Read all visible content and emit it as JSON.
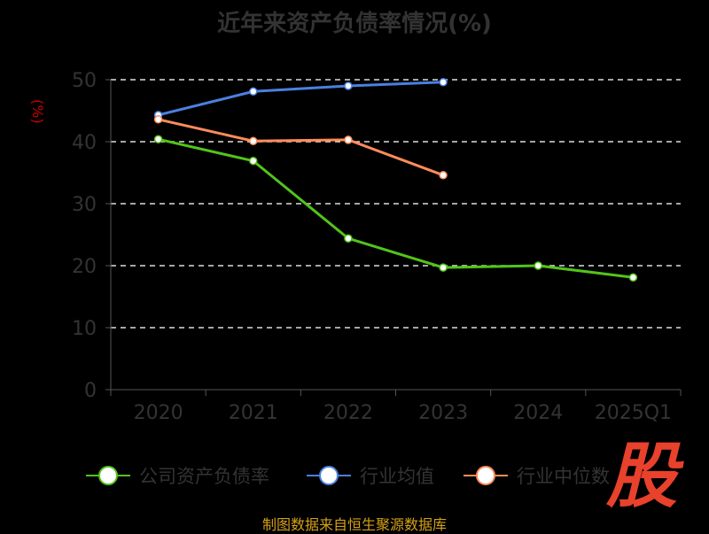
{
  "chart_data": {
    "type": "line",
    "title": "近年来资产负债率情况(%)",
    "ylabel": "(%)",
    "xlabel": "",
    "categories": [
      "2020",
      "2021",
      "2022",
      "2023",
      "2024",
      "2025Q1"
    ],
    "ylim": [
      0,
      50
    ],
    "yticks": [
      0,
      10,
      20,
      30,
      40,
      50
    ],
    "grid": true,
    "legend_position": "bottom",
    "series": [
      {
        "name": "公司资产负债率",
        "color": "#52c41a",
        "values": [
          40.4,
          36.9,
          24.4,
          19.7,
          20.0,
          18.1
        ]
      },
      {
        "name": "行业均值",
        "color": "#4a80e0",
        "values": [
          44.3,
          48.1,
          49.0,
          49.6,
          null,
          null
        ]
      },
      {
        "name": "行业中位数",
        "color": "#ff8c5a",
        "values": [
          43.6,
          40.1,
          40.3,
          34.6,
          null,
          null
        ]
      }
    ]
  },
  "source": "制图数据来自恒生聚源数据库",
  "logo": "股"
}
